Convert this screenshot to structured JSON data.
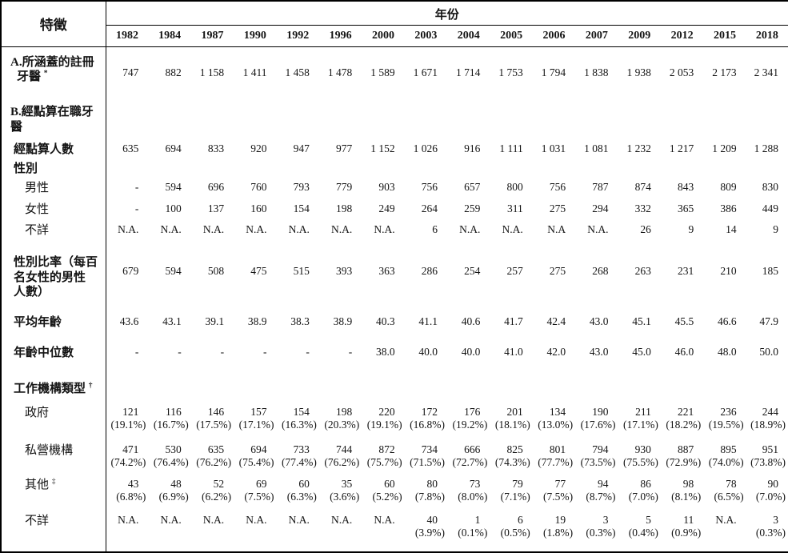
{
  "header": {
    "feature_label": "特徵",
    "year_label": "年份",
    "years": [
      "1982",
      "1984",
      "1987",
      "1990",
      "1992",
      "1996",
      "2000",
      "2003",
      "2004",
      "2005",
      "2006",
      "2007",
      "2009",
      "2012",
      "2015",
      "2018"
    ]
  },
  "rows": [
    {
      "name": "registered-dentists",
      "label_lines": [
        "A.所涵蓋的註冊",
        "牙醫"
      ],
      "sup": "*",
      "level": 0,
      "bold": true,
      "values": [
        "747",
        "882",
        "1 158",
        "1 411",
        "1 458",
        "1 478",
        "1 589",
        "1 671",
        "1 714",
        "1 753",
        "1 794",
        "1 838",
        "1 938",
        "2 053",
        "2 173",
        "2 341"
      ]
    },
    {
      "name": "enumerated-header",
      "label_lines": [
        "B.經點算在職牙醫"
      ],
      "sup": "",
      "level": 0,
      "bold": true,
      "values": []
    },
    {
      "name": "enumerated-count",
      "label_lines": [
        "經點算人數"
      ],
      "sup": "",
      "level": 1,
      "bold": true,
      "values": [
        "635",
        "694",
        "833",
        "920",
        "947",
        "977",
        "1 152",
        "1 026",
        "916",
        "1 111",
        "1 031",
        "1 081",
        "1 232",
        "1 217",
        "1 209",
        "1 288"
      ]
    },
    {
      "name": "sex-header",
      "label_lines": [
        "性別"
      ],
      "sup": "",
      "level": 1,
      "bold": true,
      "values": []
    },
    {
      "name": "male",
      "label_lines": [
        "男性"
      ],
      "sup": "",
      "level": 2,
      "bold": false,
      "values": [
        "-",
        "594",
        "696",
        "760",
        "793",
        "779",
        "903",
        "756",
        "657",
        "800",
        "756",
        "787",
        "874",
        "843",
        "809",
        "830"
      ]
    },
    {
      "name": "female",
      "label_lines": [
        "女性"
      ],
      "sup": "",
      "level": 2,
      "bold": false,
      "values": [
        "-",
        "100",
        "137",
        "160",
        "154",
        "198",
        "249",
        "264",
        "259",
        "311",
        "275",
        "294",
        "332",
        "365",
        "386",
        "449"
      ]
    },
    {
      "name": "sex-unknown",
      "label_lines": [
        "不詳"
      ],
      "sup": "",
      "level": 2,
      "bold": false,
      "values": [
        "N.A.",
        "N.A.",
        "N.A.",
        "N.A.",
        "N.A.",
        "N.A.",
        "N.A.",
        "6",
        "N.A.",
        "N.A.",
        "N.A",
        "N.A.",
        "26",
        "9",
        "14",
        "9"
      ]
    },
    {
      "name": "sex-ratio",
      "label_lines": [
        "性別比率（每百",
        "名女性的男性",
        "人數）"
      ],
      "sup": "",
      "level": 1,
      "bold": true,
      "values": [
        "679",
        "594",
        "508",
        "475",
        "515",
        "393",
        "363",
        "286",
        "254",
        "257",
        "275",
        "268",
        "263",
        "231",
        "210",
        "185"
      ]
    },
    {
      "name": "mean-age",
      "label_lines": [
        "平均年齡"
      ],
      "sup": "",
      "level": 1,
      "bold": true,
      "values": [
        "43.6",
        "43.1",
        "39.1",
        "38.9",
        "38.3",
        "38.9",
        "40.3",
        "41.1",
        "40.6",
        "41.7",
        "42.4",
        "43.0",
        "45.1",
        "45.5",
        "46.6",
        "47.9"
      ]
    },
    {
      "name": "median-age",
      "label_lines": [
        "年齡中位數"
      ],
      "sup": "",
      "level": 1,
      "bold": true,
      "values": [
        "-",
        "-",
        "-",
        "-",
        "-",
        "-",
        "38.0",
        "40.0",
        "40.0",
        "41.0",
        "42.0",
        "43.0",
        "45.0",
        "46.0",
        "48.0",
        "50.0"
      ]
    },
    {
      "name": "org-type-header",
      "label_lines": [
        "工作機構類型"
      ],
      "sup": "†",
      "level": 1,
      "bold": true,
      "values": []
    },
    {
      "name": "government",
      "label_lines": [
        "政府"
      ],
      "sup": "",
      "level": 2,
      "bold": false,
      "values": [
        "121",
        "116",
        "146",
        "157",
        "154",
        "198",
        "220",
        "172",
        "176",
        "201",
        "134",
        "190",
        "211",
        "221",
        "236",
        "244"
      ],
      "pcts": [
        "(19.1%)",
        "(16.7%)",
        "(17.5%)",
        "(17.1%)",
        "(16.3%)",
        "(20.3%)",
        "(19.1%)",
        "(16.8%)",
        "(19.2%)",
        "(18.1%)",
        "(13.0%)",
        "(17.6%)",
        "(17.1%)",
        "(18.2%)",
        "(19.5%)",
        "(18.9%)"
      ]
    },
    {
      "name": "private",
      "label_lines": [
        "私營機構"
      ],
      "sup": "",
      "level": 2,
      "bold": false,
      "values": [
        "471",
        "530",
        "635",
        "694",
        "733",
        "744",
        "872",
        "734",
        "666",
        "825",
        "801",
        "794",
        "930",
        "887",
        "895",
        "951"
      ],
      "pcts": [
        "(74.2%)",
        "(76.4%)",
        "(76.2%)",
        "(75.4%)",
        "(77.4%)",
        "(76.2%)",
        "(75.7%)",
        "(71.5%)",
        "(72.7%)",
        "(74.3%)",
        "(77.7%)",
        "(73.5%)",
        "(75.5%)",
        "(72.9%)",
        "(74.0%)",
        "(73.8%)"
      ]
    },
    {
      "name": "others",
      "label_lines": [
        "其他"
      ],
      "sup": "‡",
      "level": 2,
      "bold": false,
      "values": [
        "43",
        "48",
        "52",
        "69",
        "60",
        "35",
        "60",
        "80",
        "73",
        "79",
        "77",
        "94",
        "86",
        "98",
        "78",
        "90"
      ],
      "pcts": [
        "(6.8%)",
        "(6.9%)",
        "(6.2%)",
        "(7.5%)",
        "(6.3%)",
        "(3.6%)",
        "(5.2%)",
        "(7.8%)",
        "(8.0%)",
        "(7.1%)",
        "(7.5%)",
        "(8.7%)",
        "(7.0%)",
        "(8.1%)",
        "(6.5%)",
        "(7.0%)"
      ]
    },
    {
      "name": "org-unknown",
      "label_lines": [
        "不詳"
      ],
      "sup": "",
      "level": 2,
      "bold": false,
      "values": [
        "N.A.",
        "N.A.",
        "N.A.",
        "N.A.",
        "N.A.",
        "N.A.",
        "N.A.",
        "40",
        "1",
        "6",
        "19",
        "3",
        "5",
        "11",
        "N.A.",
        "3"
      ],
      "pcts": [
        "",
        "",
        "",
        "",
        "",
        "",
        "",
        "(3.9%)",
        "(0.1%)",
        "(0.5%)",
        "(1.8%)",
        "(0.3%)",
        "(0.4%)",
        "(0.9%)",
        "",
        "(0.3%)"
      ]
    }
  ]
}
